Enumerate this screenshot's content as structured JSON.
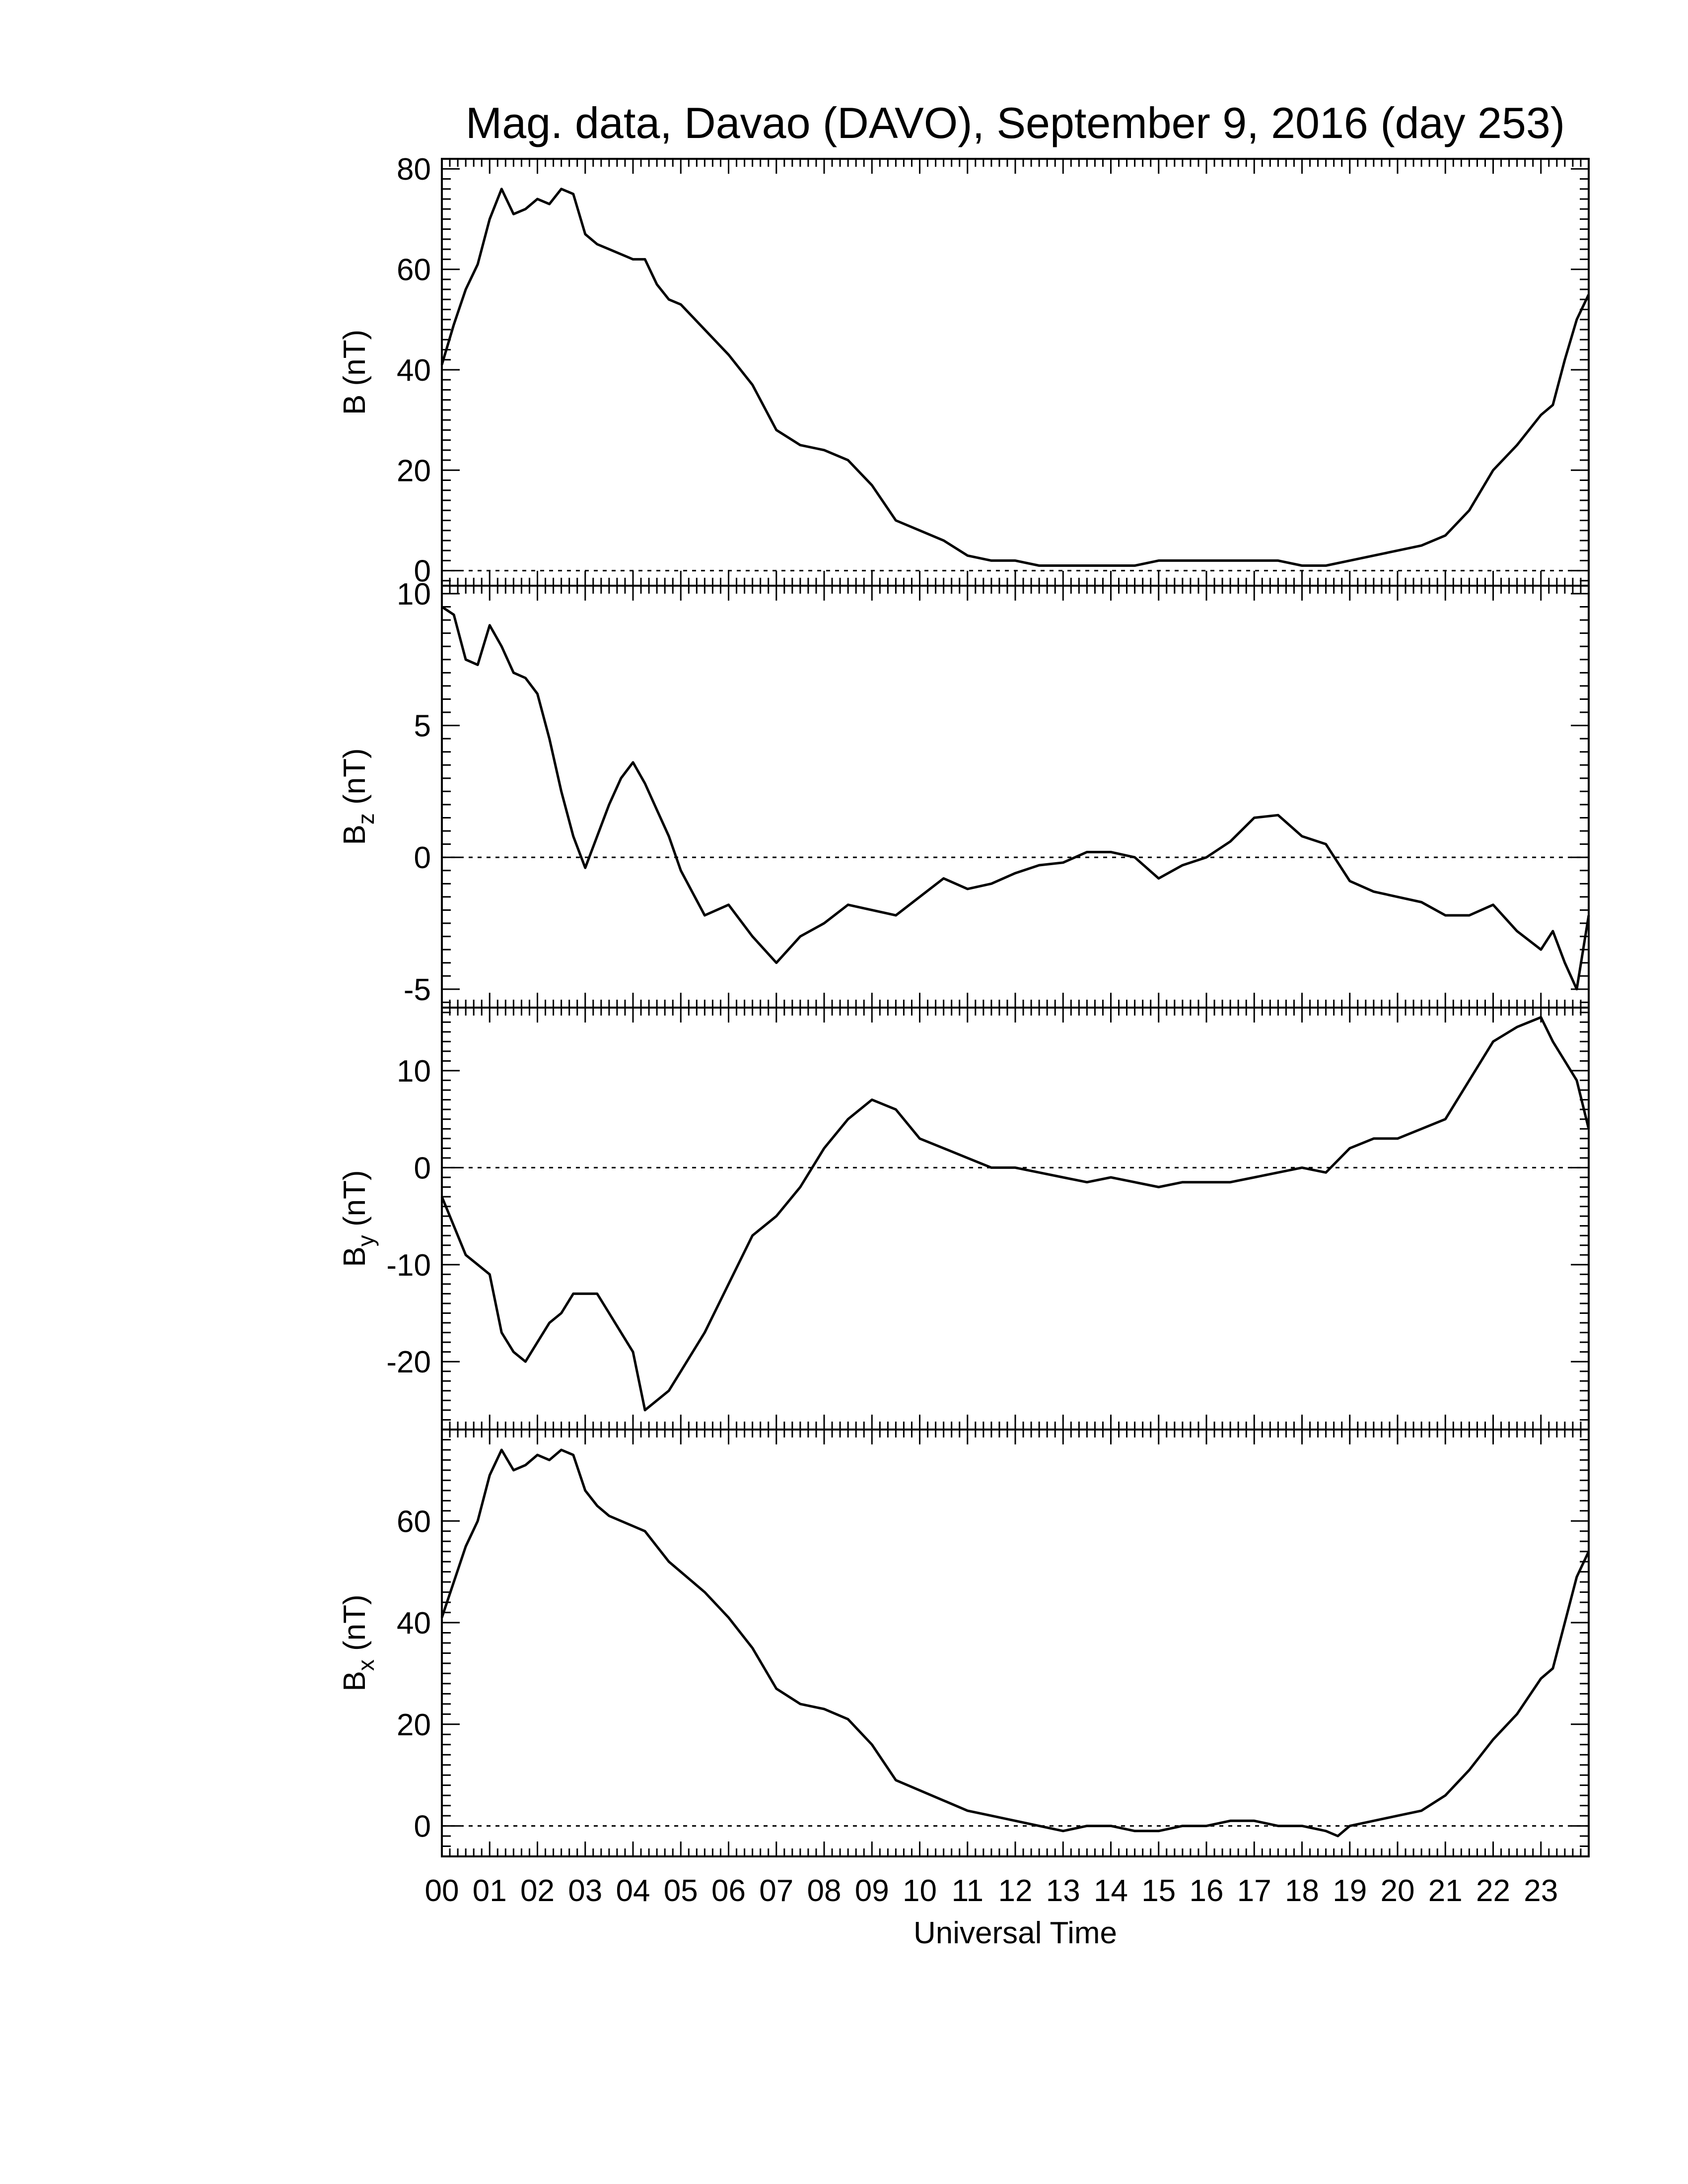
{
  "chart_data": {
    "type": "line",
    "title": "Mag. data, Davao (DAVO), September 9, 2016 (day 253)",
    "xlabel": "Universal Time",
    "xlim": [
      0,
      24
    ],
    "x_tick_labels": [
      "00",
      "01",
      "02",
      "03",
      "04",
      "05",
      "06",
      "07",
      "08",
      "09",
      "10",
      "11",
      "12",
      "13",
      "14",
      "15",
      "16",
      "17",
      "18",
      "19",
      "20",
      "21",
      "22",
      "23"
    ],
    "x_tick_values": [
      0,
      1,
      2,
      3,
      4,
      5,
      6,
      7,
      8,
      9,
      10,
      11,
      12,
      13,
      14,
      15,
      16,
      17,
      18,
      19,
      20,
      21,
      22,
      23
    ],
    "panels": [
      {
        "ylabel_main": "B",
        "ylabel_sub": "",
        "ylabel_unit": "(nT)",
        "ylim": [
          -3,
          82
        ],
        "yticks": [
          0,
          20,
          40,
          60,
          80
        ],
        "ytick_labels": [
          "0",
          "20",
          "40",
          "60",
          "80"
        ],
        "points": [
          [
            0,
            41
          ],
          [
            0.25,
            49
          ],
          [
            0.5,
            56
          ],
          [
            0.75,
            61
          ],
          [
            1.0,
            70
          ],
          [
            1.25,
            76
          ],
          [
            1.5,
            71
          ],
          [
            1.75,
            72
          ],
          [
            2.0,
            74
          ],
          [
            2.25,
            73
          ],
          [
            2.5,
            76
          ],
          [
            2.75,
            75
          ],
          [
            3.0,
            67
          ],
          [
            3.25,
            65
          ],
          [
            3.5,
            64
          ],
          [
            4.0,
            62
          ],
          [
            4.25,
            62
          ],
          [
            4.5,
            57
          ],
          [
            4.75,
            54
          ],
          [
            5.0,
            53
          ],
          [
            5.5,
            48
          ],
          [
            6.0,
            43
          ],
          [
            6.5,
            37
          ],
          [
            7.0,
            28
          ],
          [
            7.5,
            25
          ],
          [
            8.0,
            24
          ],
          [
            8.5,
            22
          ],
          [
            9.0,
            17
          ],
          [
            9.5,
            10
          ],
          [
            10.0,
            8
          ],
          [
            10.5,
            6
          ],
          [
            11.0,
            3
          ],
          [
            11.5,
            2
          ],
          [
            12.0,
            2
          ],
          [
            12.5,
            1
          ],
          [
            13.0,
            1
          ],
          [
            14.0,
            1
          ],
          [
            14.5,
            1
          ],
          [
            15.0,
            2
          ],
          [
            15.5,
            2
          ],
          [
            16.0,
            2
          ],
          [
            16.5,
            2
          ],
          [
            17.0,
            2
          ],
          [
            17.5,
            2
          ],
          [
            18.0,
            1
          ],
          [
            18.5,
            1
          ],
          [
            19.0,
            2
          ],
          [
            19.5,
            3
          ],
          [
            20.0,
            4
          ],
          [
            20.5,
            5
          ],
          [
            21.0,
            7
          ],
          [
            21.5,
            12
          ],
          [
            22.0,
            20
          ],
          [
            22.5,
            25
          ],
          [
            23.0,
            31
          ],
          [
            23.25,
            33
          ],
          [
            23.5,
            42
          ],
          [
            23.75,
            50
          ],
          [
            24.0,
            55
          ]
        ]
      },
      {
        "ylabel_main": "B",
        "ylabel_sub": "z",
        "ylabel_unit": "(nT)",
        "ylim": [
          -5.7,
          10.3
        ],
        "yticks": [
          -5,
          0,
          5,
          10
        ],
        "ytick_labels": [
          "-5",
          "0",
          "5",
          "10"
        ],
        "points": [
          [
            0,
            9.5
          ],
          [
            0.25,
            9.2
          ],
          [
            0.5,
            7.5
          ],
          [
            0.75,
            7.3
          ],
          [
            1.0,
            8.8
          ],
          [
            1.25,
            8.0
          ],
          [
            1.5,
            7.0
          ],
          [
            1.75,
            6.8
          ],
          [
            2.0,
            6.2
          ],
          [
            2.25,
            4.5
          ],
          [
            2.5,
            2.5
          ],
          [
            2.75,
            0.8
          ],
          [
            3.0,
            -0.4
          ],
          [
            3.25,
            0.8
          ],
          [
            3.5,
            2.0
          ],
          [
            3.75,
            3.0
          ],
          [
            4.0,
            3.6
          ],
          [
            4.25,
            2.8
          ],
          [
            4.5,
            1.8
          ],
          [
            4.75,
            0.8
          ],
          [
            5.0,
            -0.5
          ],
          [
            5.5,
            -2.2
          ],
          [
            6.0,
            -1.8
          ],
          [
            6.5,
            -3.0
          ],
          [
            7.0,
            -4.0
          ],
          [
            7.5,
            -3.0
          ],
          [
            8.0,
            -2.5
          ],
          [
            8.5,
            -1.8
          ],
          [
            9.0,
            -2.0
          ],
          [
            9.5,
            -2.2
          ],
          [
            10.0,
            -1.5
          ],
          [
            10.5,
            -0.8
          ],
          [
            11.0,
            -1.2
          ],
          [
            11.5,
            -1.0
          ],
          [
            12.0,
            -0.6
          ],
          [
            12.5,
            -0.3
          ],
          [
            13.0,
            -0.2
          ],
          [
            13.5,
            0.2
          ],
          [
            14.0,
            0.2
          ],
          [
            14.5,
            0.0
          ],
          [
            15.0,
            -0.8
          ],
          [
            15.5,
            -0.3
          ],
          [
            16.0,
            0.0
          ],
          [
            16.5,
            0.6
          ],
          [
            17.0,
            1.5
          ],
          [
            17.5,
            1.6
          ],
          [
            18.0,
            0.8
          ],
          [
            18.5,
            0.5
          ],
          [
            19.0,
            -0.9
          ],
          [
            19.5,
            -1.3
          ],
          [
            20.0,
            -1.5
          ],
          [
            20.5,
            -1.7
          ],
          [
            21.0,
            -2.2
          ],
          [
            21.5,
            -2.2
          ],
          [
            22.0,
            -1.8
          ],
          [
            22.5,
            -2.8
          ],
          [
            23.0,
            -3.5
          ],
          [
            23.25,
            -2.8
          ],
          [
            23.5,
            -4.0
          ],
          [
            23.75,
            -5.0
          ],
          [
            24.0,
            -2.2
          ]
        ]
      },
      {
        "ylabel_main": "B",
        "ylabel_sub": "y",
        "ylabel_unit": "(nT)",
        "ylim": [
          -27,
          16.5
        ],
        "yticks": [
          -20,
          -10,
          0,
          10
        ],
        "ytick_labels": [
          "-20",
          "-10",
          "0",
          "10"
        ],
        "points": [
          [
            0,
            -3
          ],
          [
            0.25,
            -6
          ],
          [
            0.5,
            -9
          ],
          [
            0.75,
            -10
          ],
          [
            1.0,
            -11
          ],
          [
            1.25,
            -17
          ],
          [
            1.5,
            -19
          ],
          [
            1.75,
            -20
          ],
          [
            2.0,
            -18
          ],
          [
            2.25,
            -16
          ],
          [
            2.5,
            -15
          ],
          [
            2.75,
            -13
          ],
          [
            3.0,
            -13
          ],
          [
            3.25,
            -13
          ],
          [
            3.5,
            -15
          ],
          [
            3.75,
            -17
          ],
          [
            4.0,
            -19
          ],
          [
            4.25,
            -25
          ],
          [
            4.5,
            -24
          ],
          [
            4.75,
            -23
          ],
          [
            5.0,
            -21
          ],
          [
            5.5,
            -17
          ],
          [
            6.0,
            -12
          ],
          [
            6.5,
            -7
          ],
          [
            7.0,
            -5
          ],
          [
            7.5,
            -2
          ],
          [
            8.0,
            2
          ],
          [
            8.5,
            5
          ],
          [
            9.0,
            7
          ],
          [
            9.5,
            6
          ],
          [
            10.0,
            3
          ],
          [
            10.5,
            2
          ],
          [
            11.0,
            1
          ],
          [
            11.5,
            0
          ],
          [
            12.0,
            0
          ],
          [
            12.5,
            -0.5
          ],
          [
            13.0,
            -1
          ],
          [
            13.5,
            -1.5
          ],
          [
            14.0,
            -1
          ],
          [
            14.5,
            -1.5
          ],
          [
            15.0,
            -2
          ],
          [
            15.5,
            -1.5
          ],
          [
            16.0,
            -1.5
          ],
          [
            16.5,
            -1.5
          ],
          [
            17.0,
            -1
          ],
          [
            17.5,
            -0.5
          ],
          [
            18.0,
            0
          ],
          [
            18.5,
            -0.5
          ],
          [
            19.0,
            2
          ],
          [
            19.5,
            3
          ],
          [
            20.0,
            3
          ],
          [
            20.5,
            4
          ],
          [
            21.0,
            5
          ],
          [
            21.5,
            9
          ],
          [
            22.0,
            13
          ],
          [
            22.5,
            14.5
          ],
          [
            23.0,
            15.5
          ],
          [
            23.25,
            13
          ],
          [
            23.5,
            11
          ],
          [
            23.75,
            9
          ],
          [
            24.0,
            4
          ]
        ]
      },
      {
        "ylabel_main": "B",
        "ylabel_sub": "x",
        "ylabel_unit": "(nT)",
        "ylim": [
          -6,
          78
        ],
        "yticks": [
          0,
          20,
          40,
          60
        ],
        "ytick_labels": [
          "0",
          "20",
          "40",
          "60"
        ],
        "points": [
          [
            0,
            41
          ],
          [
            0.25,
            48
          ],
          [
            0.5,
            55
          ],
          [
            0.75,
            60
          ],
          [
            1.0,
            69
          ],
          [
            1.25,
            74
          ],
          [
            1.5,
            70
          ],
          [
            1.75,
            71
          ],
          [
            2.0,
            73
          ],
          [
            2.25,
            72
          ],
          [
            2.5,
            74
          ],
          [
            2.75,
            73
          ],
          [
            3.0,
            66
          ],
          [
            3.25,
            63
          ],
          [
            3.5,
            61
          ],
          [
            4.0,
            59
          ],
          [
            4.25,
            58
          ],
          [
            4.5,
            55
          ],
          [
            4.75,
            52
          ],
          [
            5.0,
            50
          ],
          [
            5.5,
            46
          ],
          [
            6.0,
            41
          ],
          [
            6.5,
            35
          ],
          [
            7.0,
            27
          ],
          [
            7.5,
            24
          ],
          [
            8.0,
            23
          ],
          [
            8.5,
            21
          ],
          [
            9.0,
            16
          ],
          [
            9.5,
            9
          ],
          [
            10.0,
            7
          ],
          [
            10.5,
            5
          ],
          [
            11.0,
            3
          ],
          [
            11.5,
            2
          ],
          [
            12.0,
            1
          ],
          [
            12.5,
            0
          ],
          [
            13.0,
            -1
          ],
          [
            13.5,
            0
          ],
          [
            14.0,
            0
          ],
          [
            14.5,
            -1
          ],
          [
            15.0,
            -1
          ],
          [
            15.5,
            0
          ],
          [
            16.0,
            0
          ],
          [
            16.5,
            1
          ],
          [
            17.0,
            1
          ],
          [
            17.5,
            0
          ],
          [
            18.0,
            0
          ],
          [
            18.5,
            -1
          ],
          [
            18.75,
            -2
          ],
          [
            19.0,
            0
          ],
          [
            19.5,
            1
          ],
          [
            20.0,
            2
          ],
          [
            20.5,
            3
          ],
          [
            21.0,
            6
          ],
          [
            21.5,
            11
          ],
          [
            22.0,
            17
          ],
          [
            22.5,
            22
          ],
          [
            23.0,
            29
          ],
          [
            23.25,
            31
          ],
          [
            23.5,
            40
          ],
          [
            23.75,
            49
          ],
          [
            24.0,
            54
          ]
        ]
      }
    ],
    "grid": false,
    "legend": "none"
  }
}
